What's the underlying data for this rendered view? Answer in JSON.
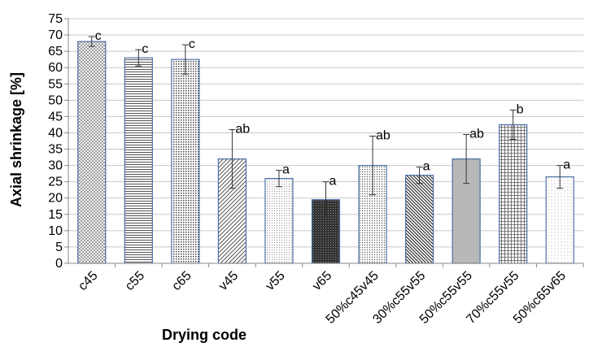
{
  "chart_data": {
    "type": "bar",
    "xlabel": "Drying code",
    "ylabel": "Axial shrinkage [%]",
    "ylim": [
      0,
      75
    ],
    "yticks": [
      0,
      5,
      10,
      15,
      20,
      25,
      30,
      35,
      40,
      45,
      50,
      55,
      60,
      65,
      70,
      75
    ],
    "grid": true,
    "categories": [
      "c45",
      "c55",
      "c65",
      "v45",
      "v55",
      "v65",
      "50%c45v45",
      "30%c55v55",
      "50%c55v55",
      "70%c55v55",
      "50%c65v65"
    ],
    "values": [
      68,
      63,
      62.5,
      32,
      26,
      19.5,
      30,
      27,
      32,
      42.5,
      26.5
    ],
    "error": [
      1.5,
      2.5,
      4.5,
      9,
      2.5,
      5.5,
      9,
      2.5,
      7.5,
      4.5,
      3.5
    ],
    "significance": [
      "c",
      "c",
      "c",
      "ab",
      "a",
      "a",
      "ab",
      "a",
      "ab",
      "b",
      "a"
    ],
    "patterns": [
      "cross",
      "hlines",
      "dots",
      "diag",
      "dense-dots",
      "dark-grid",
      "fine-dots",
      "back-diag",
      "gray",
      "grid",
      "sparse-dots"
    ],
    "colors": {
      "bar_edge": "#4a6fa5",
      "grid": "#c8c8c8",
      "pattern": "#555555",
      "dark_fill": "#333333",
      "gray_fill": "#b8b8b8"
    }
  }
}
